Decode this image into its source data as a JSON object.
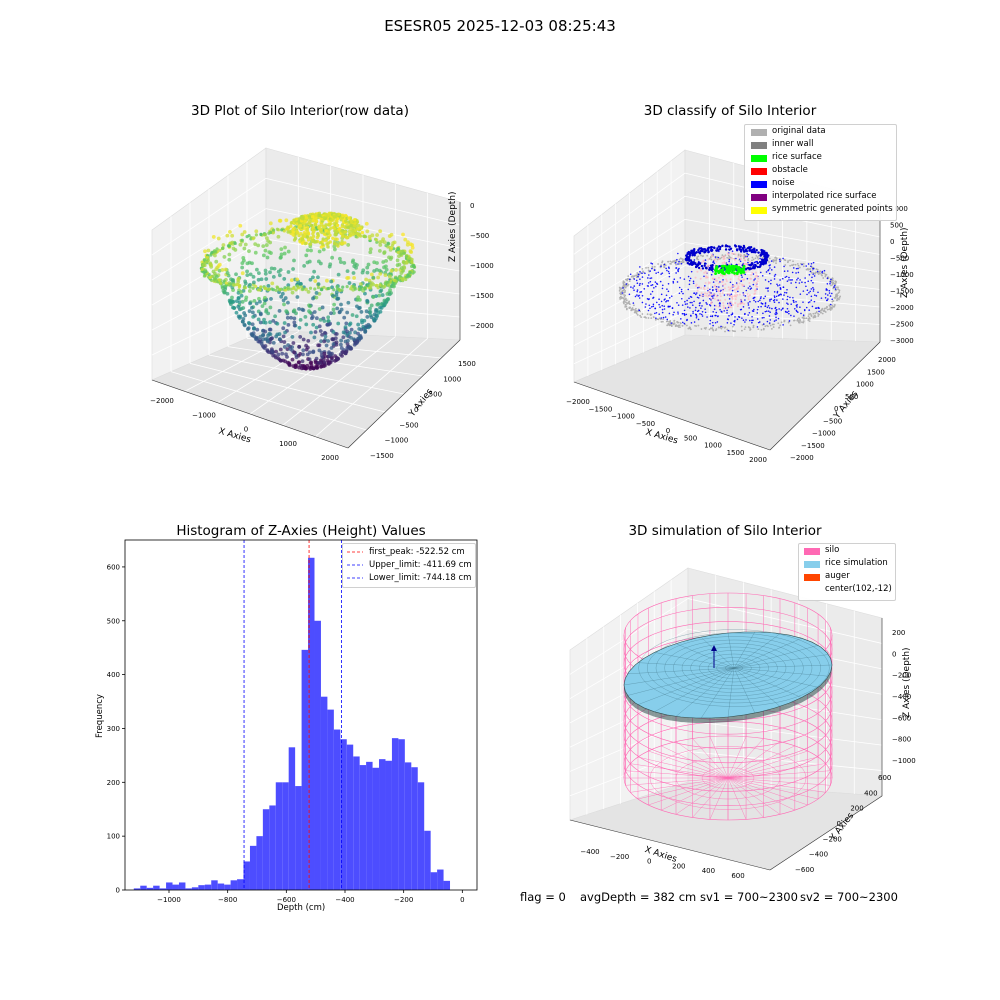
{
  "suptitle": "ESESR05 2025-12-03 08:25:43",
  "footer": {
    "flag": "flag = 0",
    "avg": "avgDepth = 382 cm",
    "sv1": "sv1 = 700~2300",
    "sv2": "sv2 = 700~2300"
  },
  "colors": {
    "hist_bar": "#4d4dff",
    "peak_line": "#ff0000",
    "limit_line": "#0000ff",
    "silo": "#ff69b4",
    "rice": "#87ceeb",
    "auger": "#ff4500"
  },
  "chart_data": [
    {
      "id": "raw",
      "type": "scatter",
      "title": "3D Plot of Silo Interior(row data)",
      "xlabel": "X Axies",
      "ylabel": "Y Axies",
      "zlabel": "Z Axies (Depth)",
      "xticks": [
        "−2000",
        "−1000",
        "0",
        "1000",
        "2000"
      ],
      "yticks": [
        "1500",
        "1000",
        "500",
        "0",
        "−500",
        "−1000",
        "−1500"
      ],
      "zticks": [
        "0",
        "−500",
        "−1000",
        "−1500",
        "−2000"
      ],
      "colormap": "viridis"
    },
    {
      "id": "classify",
      "type": "scatter",
      "title": "3D classify of Silo Interior",
      "xlabel": "X Axies",
      "ylabel": "Y Axies",
      "zlabel": "Z Axies (Depth)",
      "xticks": [
        "−2000",
        "−1500",
        "−1000",
        "−500",
        "0",
        "500",
        "1000",
        "1500",
        "2000"
      ],
      "yticks": [
        "2000",
        "1500",
        "1000",
        "500",
        "0",
        "−500",
        "−1000",
        "−1500",
        "−2000"
      ],
      "zticks": [
        "1000",
        "500",
        "0",
        "−500",
        "−1000",
        "−1500",
        "−2000",
        "−2500",
        "−3000"
      ],
      "legend": [
        {
          "label": "original data",
          "color": "#b0b0b0"
        },
        {
          "label": "inner wall",
          "color": "#808080"
        },
        {
          "label": "rice surface",
          "color": "#00ff00"
        },
        {
          "label": "obstacle",
          "color": "#ff0000"
        },
        {
          "label": "noise",
          "color": "#0000ff"
        },
        {
          "label": "interpolated rice surface",
          "color": "#800080"
        },
        {
          "label": "symmetric generated points",
          "color": "#ffff00"
        }
      ]
    },
    {
      "id": "hist",
      "type": "bar",
      "title": "Histogram of Z-Axies (Height) Values",
      "xlabel": "Depth (cm)",
      "ylabel": "Frequency",
      "xlim": [
        -1150,
        50
      ],
      "ylim": [
        0,
        650
      ],
      "xticks": [
        -1000,
        -800,
        -600,
        -400,
        -200,
        0
      ],
      "yticks": [
        0,
        100,
        200,
        300,
        400,
        500,
        600
      ],
      "bin_width": 22,
      "bins_start": -1120,
      "values": [
        3,
        8,
        4,
        8,
        3,
        14,
        10,
        14,
        3,
        5,
        9,
        10,
        18,
        12,
        10,
        18,
        20,
        53,
        82,
        100,
        150,
        157,
        200,
        200,
        265,
        193,
        446,
        617,
        500,
        359,
        335,
        298,
        280,
        270,
        248,
        232,
        238,
        227,
        243,
        240,
        282,
        280,
        237,
        228,
        200,
        110,
        33,
        38,
        17
      ],
      "vlines": [
        {
          "label": "first_peak: -522.52 cm",
          "x": -522.52,
          "color": "#ff0000"
        },
        {
          "label": "Upper_limit: -411.69 cm",
          "x": -411.69,
          "color": "#0000ff"
        },
        {
          "label": "Lower_limit: -744.18 cm",
          "x": -744.18,
          "color": "#0000ff"
        }
      ]
    },
    {
      "id": "sim",
      "type": "surface",
      "title": "3D simulation of Silo Interior",
      "xlabel": "X Axies",
      "ylabel": "Y Axies",
      "zlabel": "Z Axies (Depth)",
      "xticks": [
        "−400",
        "−200",
        "0",
        "200",
        "400",
        "600"
      ],
      "yticks": [
        "600",
        "400",
        "200",
        "0",
        "−200",
        "−400",
        "−600"
      ],
      "zticks": [
        "200",
        "0",
        "−200",
        "−400",
        "−600",
        "−800",
        "−1000"
      ],
      "legend": [
        {
          "label": "silo",
          "color": "#ff69b4"
        },
        {
          "label": "rice simulation",
          "color": "#87ceeb"
        },
        {
          "label": "auger",
          "color": "#ff4500"
        },
        {
          "label": "center(102,-12)",
          "color": ""
        }
      ]
    }
  ]
}
